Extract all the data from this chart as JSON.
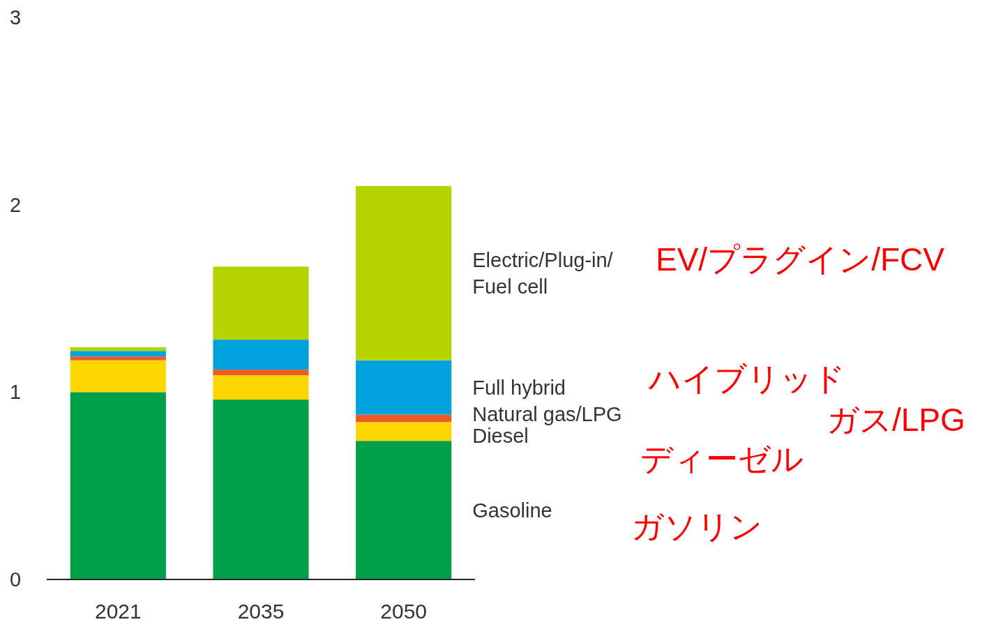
{
  "chart_data": {
    "type": "bar",
    "stacked": true,
    "categories": [
      "2021",
      "2035",
      "2050"
    ],
    "series": [
      {
        "name": "Gasoline",
        "color": "#00a04a",
        "values": [
          1.0,
          0.96,
          0.74
        ]
      },
      {
        "name": "Diesel",
        "color": "#ffd700",
        "values": [
          0.17,
          0.13,
          0.1
        ]
      },
      {
        "name": "Natural gas/LPG",
        "color": "#ee5a24",
        "values": [
          0.02,
          0.03,
          0.04
        ]
      },
      {
        "name": "Full hybrid",
        "color": "#00a2de",
        "values": [
          0.03,
          0.16,
          0.29
        ]
      },
      {
        "name": "Electric/Plug-in/Fuel cell",
        "color": "#b6d300",
        "values": [
          0.02,
          0.39,
          0.93
        ]
      }
    ],
    "ylim": [
      0,
      3
    ],
    "yticks": [
      0,
      1,
      2,
      3
    ],
    "annotations": [
      "EV/プラグイン/FCV",
      "ハイブリッド",
      "ガス/LPG",
      "ディーゼル",
      "ガソリン"
    ]
  }
}
